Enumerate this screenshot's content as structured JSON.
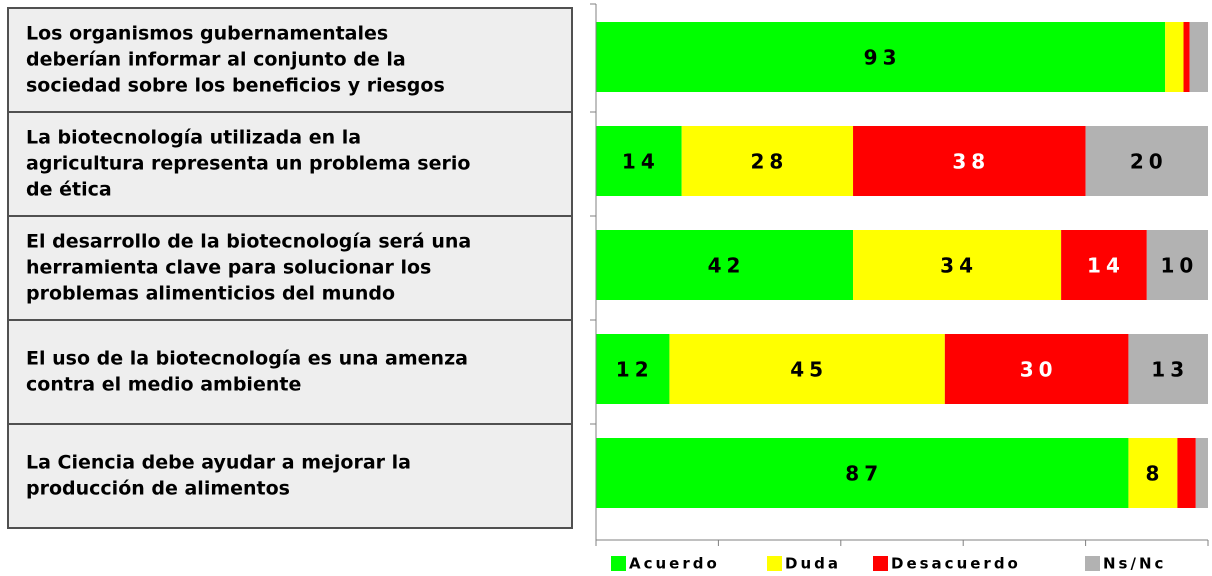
{
  "chart_data": {
    "type": "stacked-barh",
    "categories": [
      [
        "Los organismos gubernamentales",
        "deberían informar al conjunto de la",
        "sociedad sobre los beneficios y riesgos"
      ],
      [
        "La biotecnología utilizada en la",
        "agricultura representa un problema serio",
        "de ética"
      ],
      [
        "El desarrollo de la biotecnología será una",
        "herramienta clave para solucionar los",
        "problemas alimenticios del mundo"
      ],
      [
        "El uso de la biotecnología es una amenza",
        "contra el medio ambiente"
      ],
      [
        "La Ciencia debe ayudar a mejorar la",
        "producción de alimentos"
      ]
    ],
    "series": [
      {
        "name": "Acuerdo",
        "color": "#00ff00",
        "values": [
          93,
          14,
          42,
          12,
          87
        ]
      },
      {
        "name": "Duda",
        "color": "#ffff00",
        "values": [
          3,
          28,
          34,
          45,
          8
        ]
      },
      {
        "name": "Desacuerdo",
        "color": "#ff0000",
        "values": [
          1,
          38,
          14,
          30,
          3
        ]
      },
      {
        "name": "Ns/Nc",
        "color": "#b2b2b2",
        "values": [
          3,
          20,
          10,
          13,
          2
        ]
      }
    ],
    "xlim": [
      0,
      100
    ],
    "xticks": [
      0,
      20,
      40,
      60,
      80,
      100
    ]
  }
}
